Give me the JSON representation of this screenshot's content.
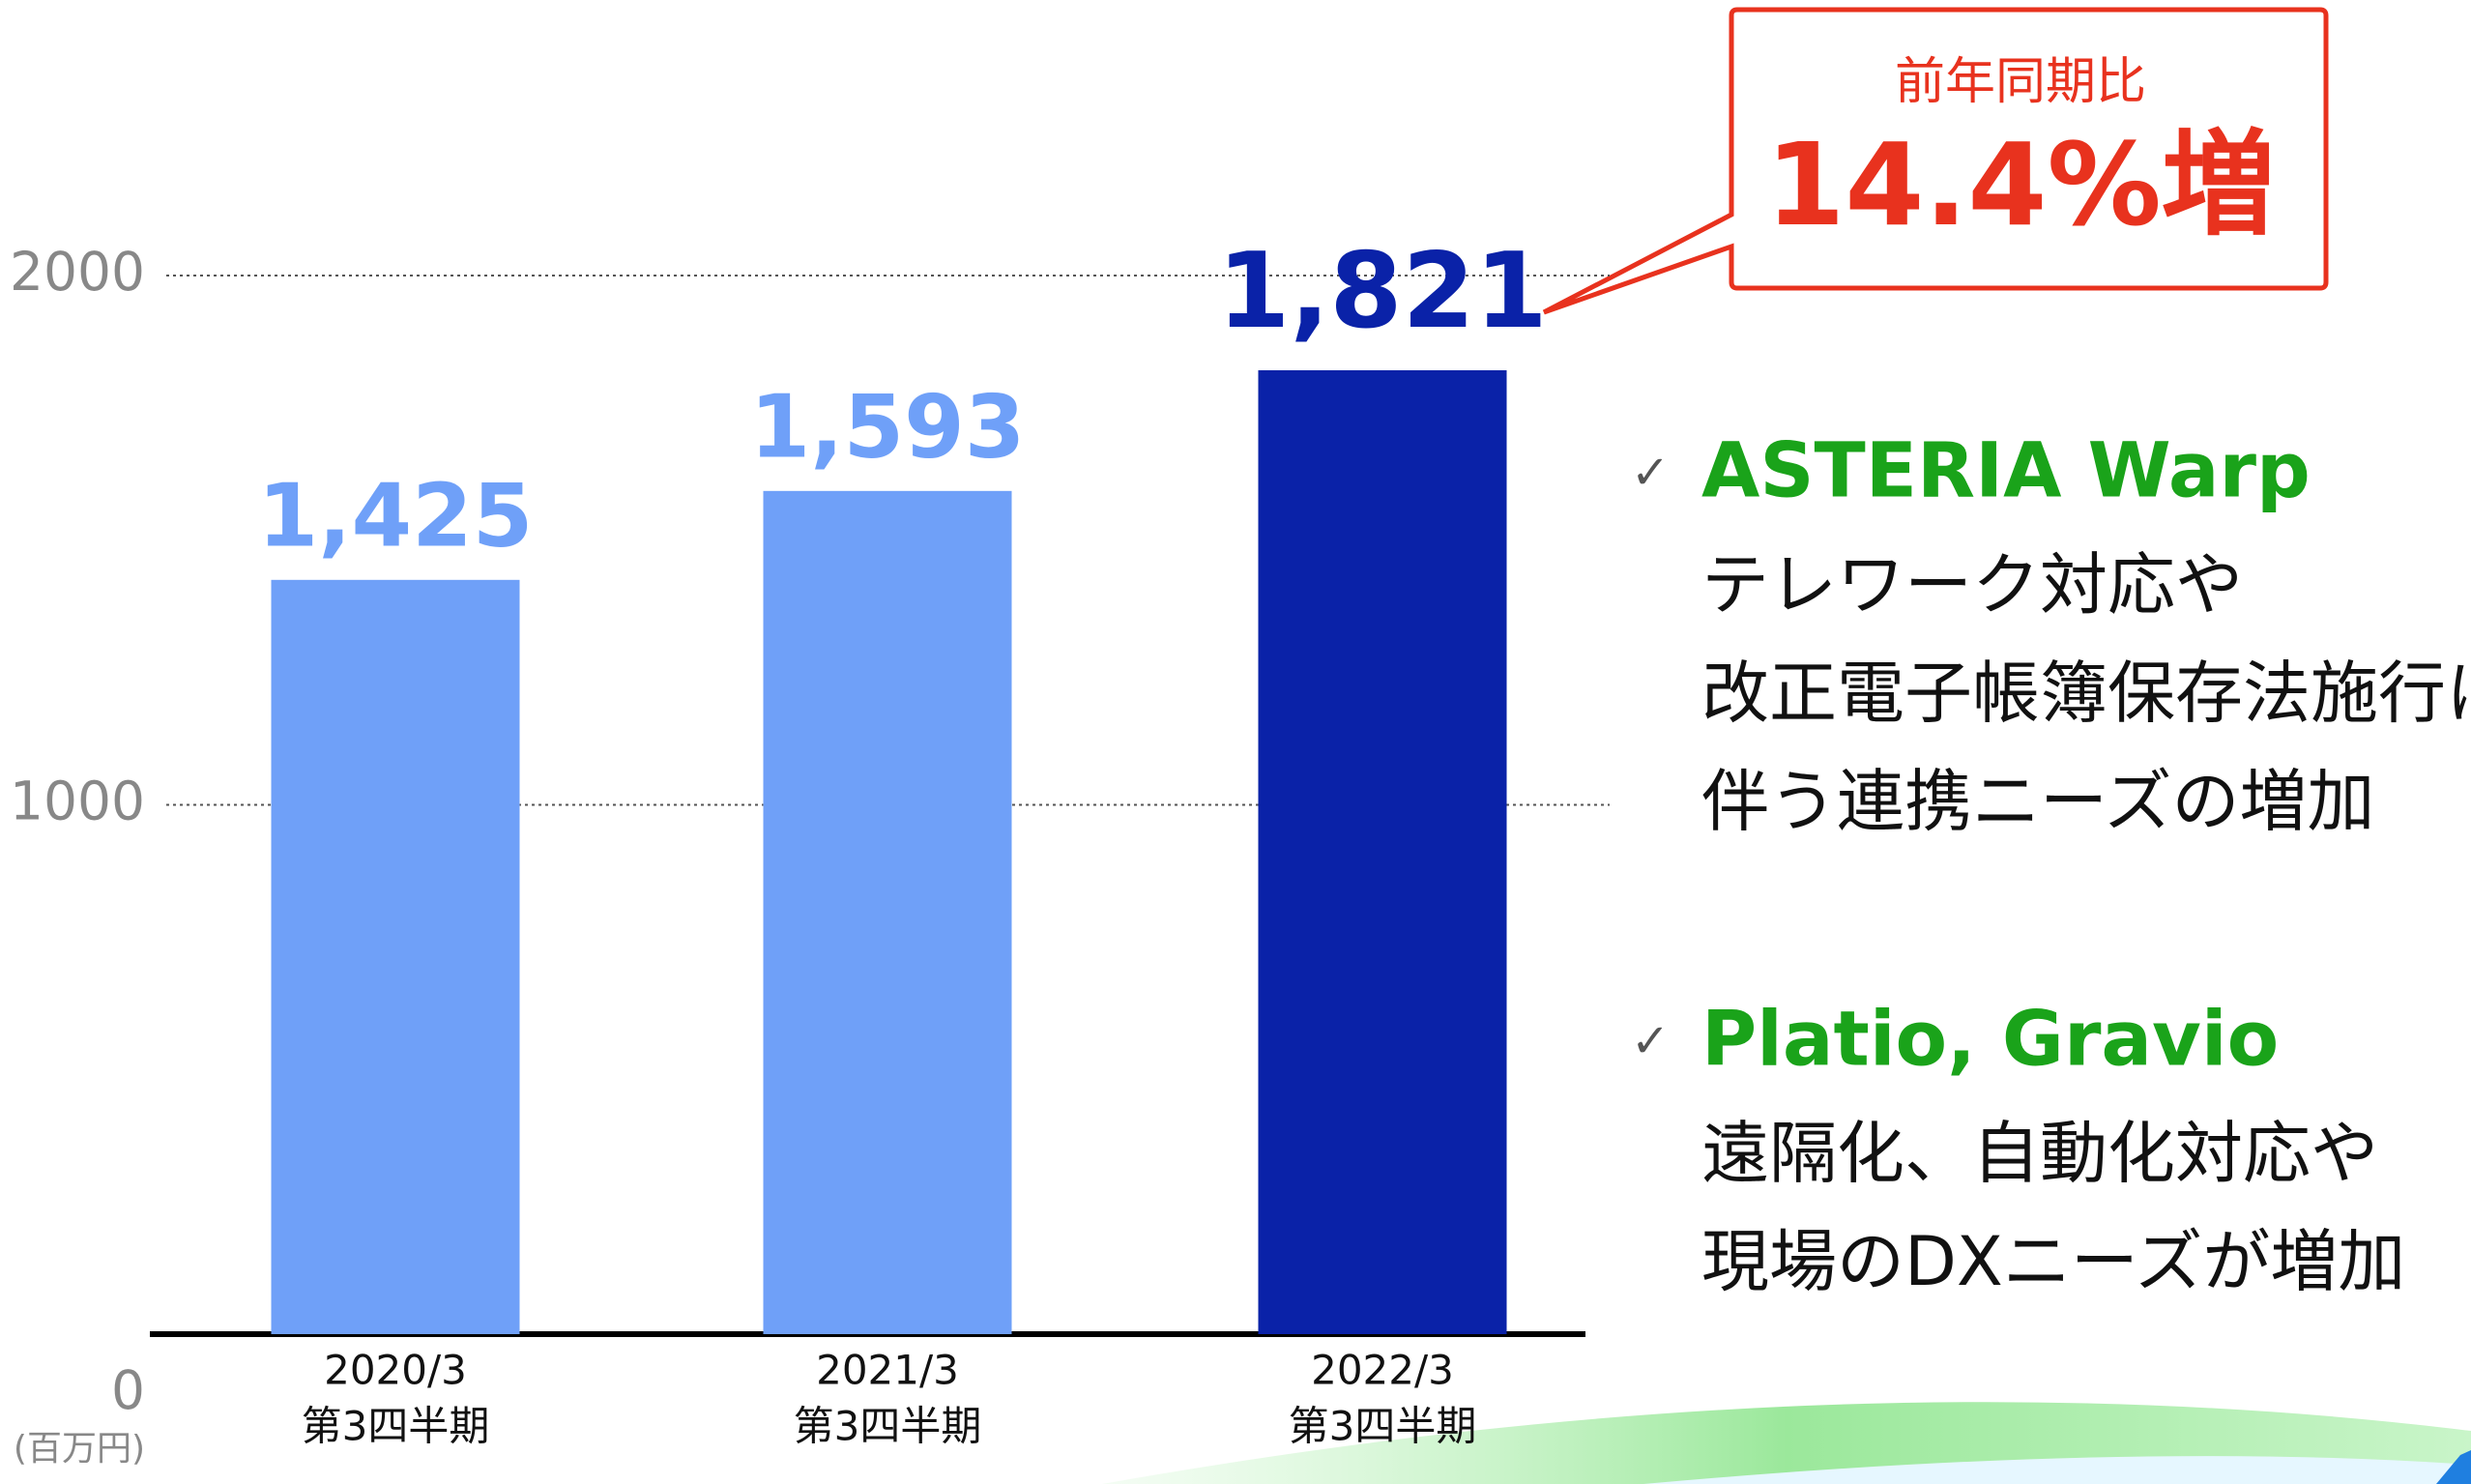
{
  "chart_data": {
    "type": "bar",
    "categories": [
      "2020/3",
      "2021/3",
      "2022/3"
    ],
    "category_sublabels": [
      "第3四半期",
      "第3四半期",
      "第3四半期"
    ],
    "values": [
      1425,
      1593,
      1821
    ],
    "value_labels": [
      "1,425",
      "1,593",
      "1,821"
    ],
    "colors": [
      "#6fa0f8",
      "#6fa0f8",
      "#0a22a8"
    ],
    "ylim": [
      0,
      2000
    ],
    "yticks": [
      0,
      1000,
      2000
    ],
    "grid": true,
    "unit_label": "(百万円)",
    "callout": {
      "heading": "前年同期比",
      "value": "14.4%増"
    },
    "notes": [
      {
        "title": "ASTERIA Warp",
        "lines": [
          "テレワーク対応や",
          "改正電子帳簿保存法施行に",
          "伴う連携ニーズの増加"
        ]
      },
      {
        "title": "Platio, Gravio",
        "lines": [
          "遠隔化、自動化対応や",
          "現場のDXニーズが増加"
        ]
      }
    ]
  }
}
